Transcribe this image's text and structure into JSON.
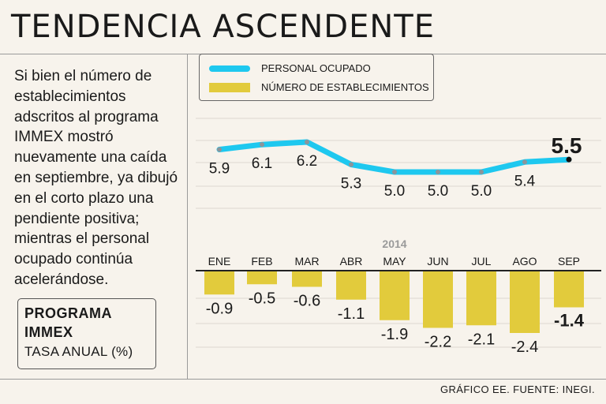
{
  "title": "TENDENCIA ASCENDENTE",
  "intro": "Si bien el número de establecimientos adscritos al programa IMMEX mostró nuevamente una caída en septiembre, ya dibujó en el corto plazo una pendiente positiva; mientras el personal ocupado continúa acelerándose.",
  "program_box": {
    "title": "PROGRAMA IMMEX",
    "subtitle": "TASA ANUAL (%)"
  },
  "footer": "GRÁFICO EE. FUENTE: INEGI.",
  "chart_data": {
    "type": "line+bar",
    "year_label": "2014",
    "categories": [
      "ENE",
      "FEB",
      "MAR",
      "ABR",
      "MAY",
      "JUN",
      "JUL",
      "AGO",
      "SEP"
    ],
    "series": [
      {
        "name": "PERSONAL OCUPADO",
        "kind": "line",
        "color": "#1ec8ef",
        "values": [
          5.9,
          6.1,
          6.2,
          5.3,
          5.0,
          5.0,
          5.0,
          5.4,
          5.5
        ],
        "labels": [
          "5.9",
          "6.1",
          "6.2",
          "5.3",
          "5.0",
          "5.0",
          "5.0",
          "5.4",
          "5.5"
        ]
      },
      {
        "name": "NÚMERO DE ESTABLECIMIENTOS",
        "kind": "bar",
        "color": "#e2cb3c",
        "values": [
          -0.9,
          -0.5,
          -0.6,
          -1.1,
          -1.9,
          -2.2,
          -2.1,
          -2.4,
          -1.4
        ],
        "labels": [
          "-0.9",
          "-0.5",
          "-0.6",
          "-1.1",
          "-1.9",
          "-2.2",
          "-2.1",
          "-2.4",
          "-1.4"
        ]
      }
    ],
    "highlight_last": true
  }
}
